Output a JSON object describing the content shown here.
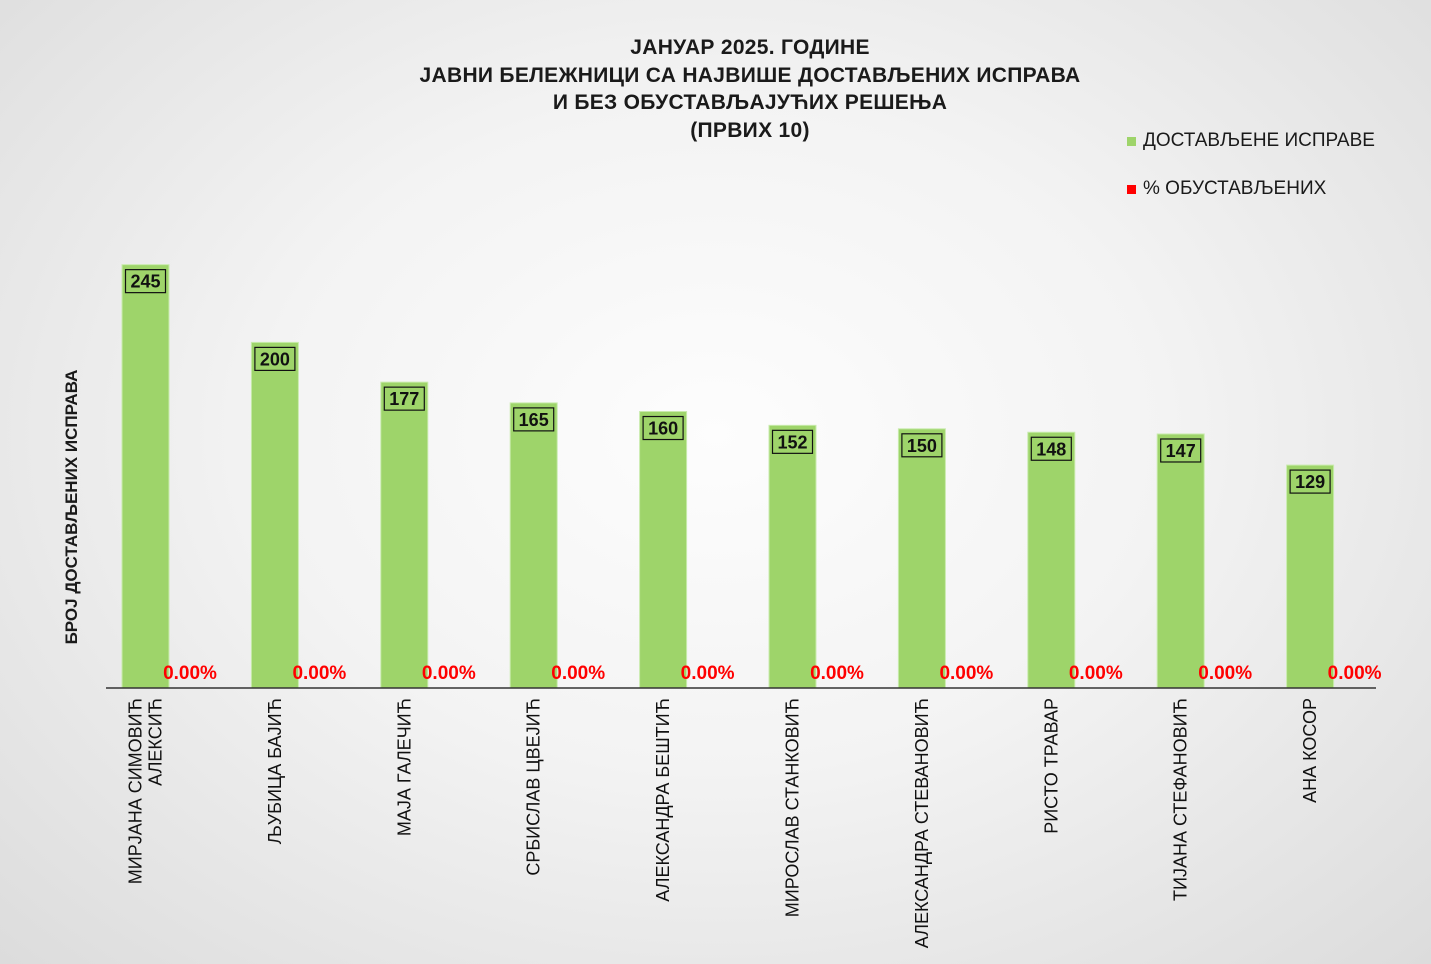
{
  "chart_data": {
    "type": "bar",
    "title_lines": [
      "ЈАНУАР 2025. ГОДИНЕ",
      "ЈАВНИ БЕЛЕЖНИЦИ СА НАЈВИШЕ ДОСТАВЉЕНИХ ИСПРАВА",
      "И БЕЗ ОБУСТАВЉАЈУЋИХ РЕШЕЊА",
      "(ПРВИХ 10)"
    ],
    "ylabel": "БРОЈ ДОСТАВЉЕНИХ ИСПРАВА",
    "xlabel": "",
    "ylim": [
      0,
      270
    ],
    "grid": false,
    "legend_position": "top-right",
    "categories": [
      [
        "МИРЈАНА СИМОВИЋ",
        "АЛЕКСИЋ"
      ],
      [
        "ЉУБИЦА БАЈИЋ"
      ],
      [
        "МАЈА ГАЛЕЧИЋ"
      ],
      [
        "СРБИСЛАВ ЦВЕЈИЋ"
      ],
      [
        "АЛЕКСАНДРА БЕШТИЋ"
      ],
      [
        "МИРОСЛАВ СТАНКОВИЋ"
      ],
      [
        "АЛЕКСАНДРА СТЕВАНОВИЋ"
      ],
      [
        "РИСТО ТРАВАР"
      ],
      [
        "ТИЈАНА СТЕФАНОВИЋ"
      ],
      [
        "АНА КОСОР"
      ]
    ],
    "series": [
      {
        "name": "ДОСТАВЉЕНЕ  ИСПРАВЕ",
        "color": "#9ed46a",
        "values": [
          245,
          200,
          177,
          165,
          160,
          152,
          150,
          148,
          147,
          129
        ],
        "labels": [
          "245",
          "200",
          "177",
          "165",
          "160",
          "152",
          "150",
          "148",
          "147",
          "129"
        ]
      },
      {
        "name": "% ОБУСТАВЉЕНИХ",
        "color": "#ff0000",
        "values": [
          0,
          0,
          0,
          0,
          0,
          0,
          0,
          0,
          0,
          0
        ],
        "labels": [
          "0.00%",
          "0.00%",
          "0.00%",
          "0.00%",
          "0.00%",
          "0.00%",
          "0.00%",
          "0.00%",
          "0.00%",
          "0.00%"
        ]
      }
    ]
  }
}
